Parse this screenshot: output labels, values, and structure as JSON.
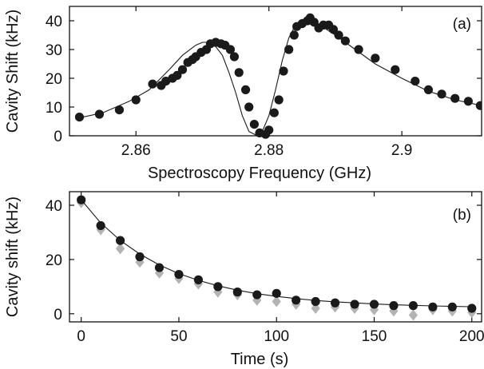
{
  "chart_data": [
    {
      "panel_label": "(a)",
      "type": "scatter",
      "xlabel": "Spectroscopy Frequency (GHz)",
      "ylabel": "Cavity Shift (kHz)",
      "xlim": [
        2.85,
        2.912
      ],
      "ylim": [
        0,
        45
      ],
      "xticks": [
        2.86,
        2.88,
        2.9
      ],
      "xtick_labels": [
        "2.86",
        "2.88",
        "2.9"
      ],
      "yticks": [
        0,
        10,
        20,
        30,
        40
      ],
      "ytick_labels": [
        "0",
        "10",
        "20",
        "30",
        "40"
      ],
      "colors": {
        "points": "#1a1a1a",
        "fit": "#1a1a1a"
      },
      "series": [
        {
          "kind": "points",
          "x": [
            2.8515,
            2.8545,
            2.8575,
            2.86,
            2.8625,
            2.8638,
            2.8645,
            2.8655,
            2.8662,
            2.867,
            2.8678,
            2.8685,
            2.869,
            2.8698,
            2.8706,
            2.8712,
            2.872,
            2.8728,
            2.8734,
            2.8742,
            2.8748,
            2.8755,
            2.8765,
            2.877,
            2.8778,
            2.8786,
            2.8795,
            2.88,
            2.8808,
            2.8815,
            2.8822,
            2.883,
            2.8838,
            2.8842,
            2.885,
            2.8858,
            2.8862,
            2.8868,
            2.8875,
            2.8882,
            2.889,
            2.8897,
            2.8905,
            2.8915,
            2.8935,
            2.896,
            2.899,
            2.902,
            2.904,
            2.906,
            2.908,
            2.91,
            2.9118
          ],
          "y": [
            6.5,
            7.5,
            9,
            12.5,
            18,
            17.5,
            19,
            20,
            21,
            23,
            25.5,
            26.5,
            27.5,
            29,
            30,
            32,
            32.5,
            32,
            31.5,
            30,
            27.5,
            22,
            16,
            10,
            4,
            1,
            0.5,
            2,
            8,
            12.5,
            22.5,
            30,
            35,
            38,
            39,
            40,
            41,
            39.5,
            37.5,
            38.5,
            38.5,
            37,
            35,
            33,
            30,
            27,
            23,
            19,
            16,
            14.5,
            13,
            12,
            10.5
          ]
        },
        {
          "kind": "fit",
          "x": [
            2.851,
            2.855,
            2.859,
            2.862,
            2.865,
            2.867,
            2.869,
            2.87,
            2.871,
            2.872,
            2.873,
            2.874,
            2.875,
            2.876,
            2.877,
            2.878,
            2.879,
            2.88,
            2.881,
            2.882,
            2.883,
            2.884,
            2.885,
            2.886,
            2.888,
            2.89,
            2.893,
            2.896,
            2.9,
            2.904,
            2.908,
            2.912
          ],
          "y": [
            6,
            8,
            12,
            16,
            23,
            28,
            31.5,
            32.5,
            32.5,
            31,
            28,
            22,
            15,
            7,
            1.5,
            0.3,
            1.5,
            7,
            16,
            26,
            34,
            38.5,
            40.5,
            40,
            38,
            35,
            30,
            25,
            20,
            15.5,
            12.5,
            10.5
          ]
        }
      ]
    },
    {
      "panel_label": "(b)",
      "type": "scatter",
      "xlabel": "Time (s)",
      "ylabel": "Cavity shift (kHz)",
      "xlim": [
        -6,
        205
      ],
      "ylim": [
        -3,
        45
      ],
      "xticks": [
        0,
        50,
        100,
        150,
        200
      ],
      "xtick_labels": [
        "0",
        "50",
        "100",
        "150",
        "200"
      ],
      "yticks": [
        0,
        20,
        40
      ],
      "ytick_labels": [
        "0",
        "20",
        "40"
      ],
      "colors": {
        "points": "#1a1a1a",
        "diamonds": "#b3b3b3",
        "fit": "#1a1a1a"
      },
      "series": [
        {
          "kind": "diamonds",
          "x": [
            0,
            10,
            20,
            30,
            40,
            50,
            60,
            70,
            80,
            90,
            100,
            110,
            120,
            130,
            140,
            150,
            160,
            170,
            180,
            190,
            200
          ],
          "y": [
            41,
            31,
            24,
            19,
            15,
            13,
            11,
            8,
            7,
            5,
            4.5,
            3.5,
            2,
            2.5,
            2,
            1.5,
            1,
            -0.5,
            1.5,
            1,
            0.5
          ]
        },
        {
          "kind": "points",
          "x": [
            0,
            10,
            20,
            30,
            40,
            50,
            60,
            70,
            80,
            90,
            100,
            110,
            120,
            130,
            140,
            150,
            160,
            170,
            180,
            190,
            200
          ],
          "y": [
            42,
            32.5,
            27,
            21,
            17,
            14.5,
            12.5,
            10,
            8,
            7,
            7.5,
            5,
            4.5,
            4,
            3.5,
            3.5,
            3,
            3,
            2.5,
            2.5,
            2
          ]
        },
        {
          "kind": "fit",
          "x": [
            0,
            10,
            20,
            30,
            40,
            50,
            60,
            70,
            80,
            90,
            100,
            110,
            120,
            130,
            140,
            150,
            160,
            170,
            180,
            190,
            200
          ],
          "y": [
            42,
            33.5,
            27,
            22,
            18,
            14.8,
            12.3,
            10.3,
            8.7,
            7.4,
            6.4,
            5.6,
            4.9,
            4.4,
            4,
            3.6,
            3.3,
            3.1,
            2.9,
            2.7,
            2.6
          ]
        }
      ]
    }
  ]
}
